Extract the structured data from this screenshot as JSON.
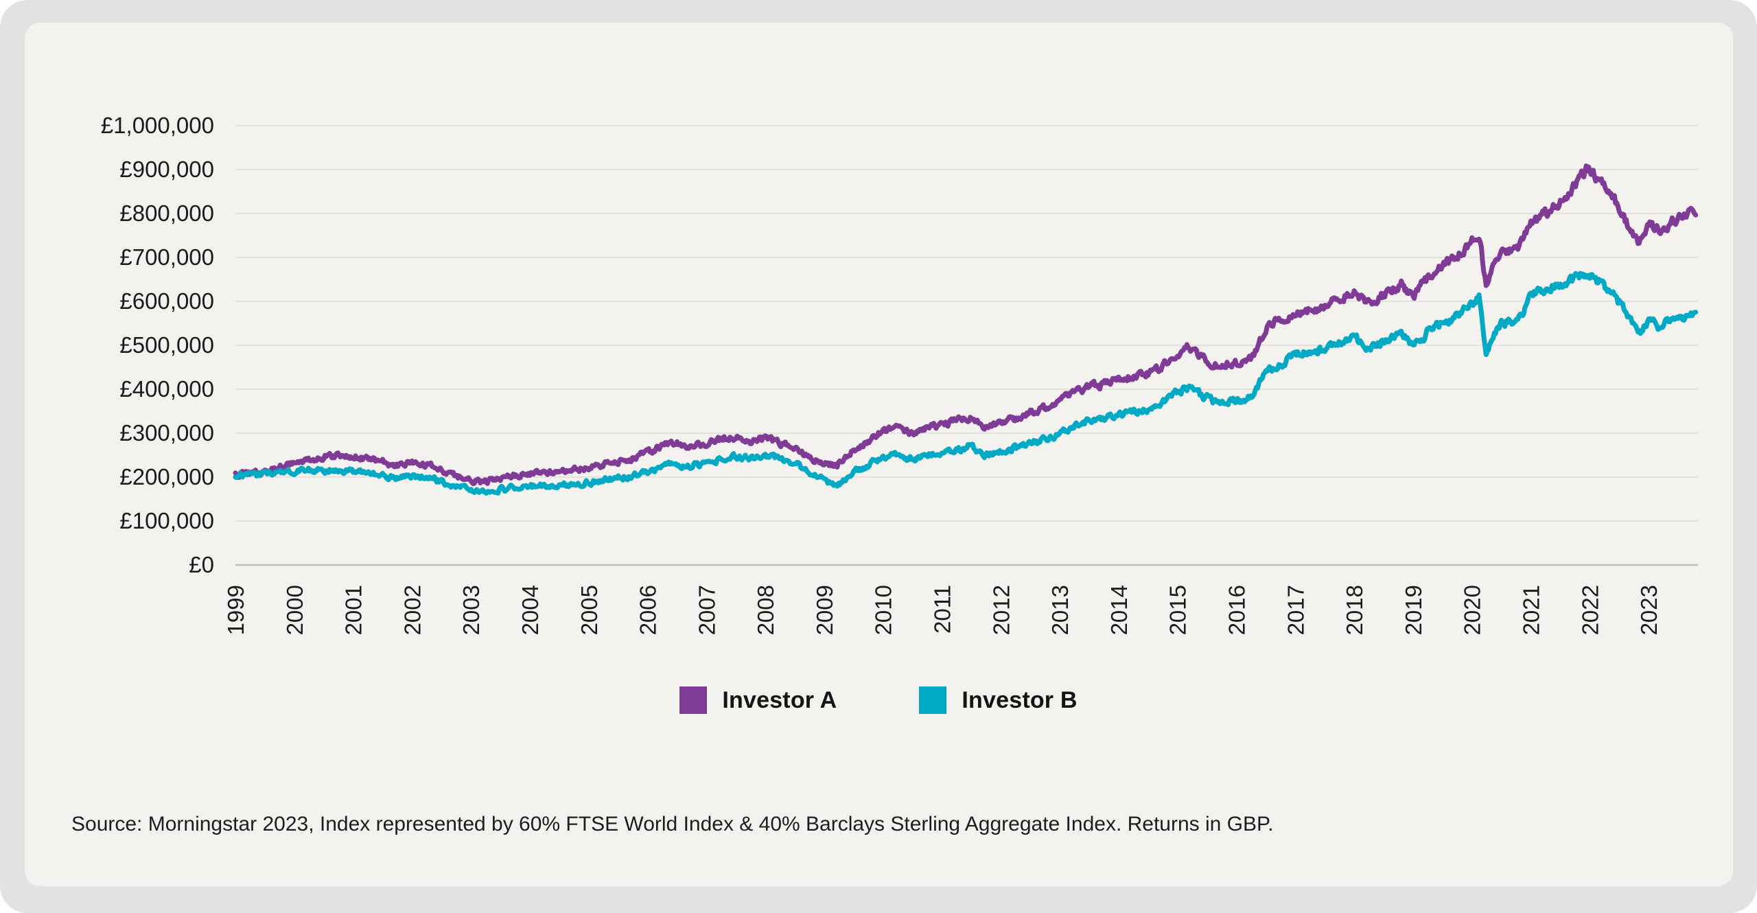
{
  "window": {
    "background_color": "#e2e2e4",
    "card_background_color": "#f3f2ef",
    "gridline_color": "#e5e3e0",
    "axisline_color": "#bcbbb9",
    "text_color": "#1b1b1b"
  },
  "chart_data": {
    "type": "line",
    "title": "",
    "xlabel": "",
    "ylabel": "",
    "currency": "GBP",
    "ylim": [
      0,
      1000000
    ],
    "xlim": [
      1999,
      2023.85
    ],
    "grid": "horizontal",
    "legend_position": "bottom-center",
    "y_ticks": [
      {
        "value": 0,
        "label": "£0"
      },
      {
        "value": 100000,
        "label": "£100,000"
      },
      {
        "value": 200000,
        "label": "£200,000"
      },
      {
        "value": 300000,
        "label": "£300,000"
      },
      {
        "value": 400000,
        "label": "£400,000"
      },
      {
        "value": 500000,
        "label": "£500,000"
      },
      {
        "value": 600000,
        "label": "£600,000"
      },
      {
        "value": 700000,
        "label": "£700,000"
      },
      {
        "value": 800000,
        "label": "£800,000"
      },
      {
        "value": 900000,
        "label": "£900,000"
      },
      {
        "value": 1000000,
        "label": "£1,000,000"
      }
    ],
    "x_ticks": [
      {
        "value": 1999,
        "label": "1999"
      },
      {
        "value": 2000,
        "label": "2000"
      },
      {
        "value": 2001,
        "label": "2001"
      },
      {
        "value": 2002,
        "label": "2002"
      },
      {
        "value": 2003,
        "label": "2003"
      },
      {
        "value": 2004,
        "label": "2004"
      },
      {
        "value": 2005,
        "label": "2005"
      },
      {
        "value": 2006,
        "label": "2006"
      },
      {
        "value": 2007,
        "label": "2007"
      },
      {
        "value": 2008,
        "label": "2008"
      },
      {
        "value": 2009,
        "label": "2009"
      },
      {
        "value": 2010,
        "label": "2010"
      },
      {
        "value": 2011,
        "label": "2011"
      },
      {
        "value": 2012,
        "label": "2012"
      },
      {
        "value": 2013,
        "label": "2013"
      },
      {
        "value": 2014,
        "label": "2014"
      },
      {
        "value": 2015,
        "label": "2015"
      },
      {
        "value": 2016,
        "label": "2016"
      },
      {
        "value": 2017,
        "label": "2017"
      },
      {
        "value": 2018,
        "label": "2018"
      },
      {
        "value": 2019,
        "label": "2019"
      },
      {
        "value": 2020,
        "label": "2020"
      },
      {
        "value": 2021,
        "label": "2021"
      },
      {
        "value": 2022,
        "label": "2022"
      },
      {
        "value": 2023,
        "label": "2023"
      }
    ],
    "series": [
      {
        "name": "Investor A",
        "color": "#7F3B95",
        "points": [
          [
            1999.0,
            205000
          ],
          [
            1999.25,
            210000
          ],
          [
            1999.5,
            214000
          ],
          [
            1999.75,
            222000
          ],
          [
            2000.0,
            231000
          ],
          [
            2000.25,
            240000
          ],
          [
            2000.5,
            246000
          ],
          [
            2000.75,
            251000
          ],
          [
            2001.0,
            247000
          ],
          [
            2001.25,
            241000
          ],
          [
            2001.5,
            237000
          ],
          [
            2001.7,
            224000
          ],
          [
            2001.9,
            232000
          ],
          [
            2002.1,
            230000
          ],
          [
            2002.4,
            222000
          ],
          [
            2002.6,
            210000
          ],
          [
            2002.8,
            200000
          ],
          [
            2003.0,
            193000
          ],
          [
            2003.2,
            187000
          ],
          [
            2003.5,
            199000
          ],
          [
            2003.75,
            205000
          ],
          [
            2004.0,
            209000
          ],
          [
            2004.3,
            211000
          ],
          [
            2004.6,
            214000
          ],
          [
            2004.9,
            219000
          ],
          [
            2005.1,
            224000
          ],
          [
            2005.4,
            232000
          ],
          [
            2005.7,
            241000
          ],
          [
            2006.0,
            256000
          ],
          [
            2006.25,
            270000
          ],
          [
            2006.5,
            280000
          ],
          [
            2006.7,
            267000
          ],
          [
            2007.0,
            277000
          ],
          [
            2007.3,
            289000
          ],
          [
            2007.5,
            290000
          ],
          [
            2007.75,
            281000
          ],
          [
            2008.0,
            288000
          ],
          [
            2008.25,
            277000
          ],
          [
            2008.5,
            267000
          ],
          [
            2008.75,
            242000
          ],
          [
            2009.0,
            230000
          ],
          [
            2009.2,
            225000
          ],
          [
            2009.5,
            262000
          ],
          [
            2009.75,
            283000
          ],
          [
            2010.0,
            303000
          ],
          [
            2010.25,
            310000
          ],
          [
            2010.5,
            296000
          ],
          [
            2010.75,
            312000
          ],
          [
            2011.0,
            320000
          ],
          [
            2011.3,
            330000
          ],
          [
            2011.5,
            334000
          ],
          [
            2011.7,
            308000
          ],
          [
            2011.9,
            318000
          ],
          [
            2012.1,
            327000
          ],
          [
            2012.3,
            336000
          ],
          [
            2012.5,
            348000
          ],
          [
            2012.75,
            356000
          ],
          [
            2013.0,
            372000
          ],
          [
            2013.25,
            392000
          ],
          [
            2013.5,
            405000
          ],
          [
            2013.75,
            412000
          ],
          [
            2014.0,
            420000
          ],
          [
            2014.25,
            428000
          ],
          [
            2014.5,
            436000
          ],
          [
            2014.75,
            452000
          ],
          [
            2015.0,
            480000
          ],
          [
            2015.2,
            497000
          ],
          [
            2015.45,
            468000
          ],
          [
            2015.7,
            452000
          ],
          [
            2015.9,
            462000
          ],
          [
            2016.1,
            458000
          ],
          [
            2016.3,
            475000
          ],
          [
            2016.5,
            540000
          ],
          [
            2016.75,
            560000
          ],
          [
            2017.0,
            573000
          ],
          [
            2017.25,
            578000
          ],
          [
            2017.5,
            589000
          ],
          [
            2017.75,
            605000
          ],
          [
            2018.0,
            623000
          ],
          [
            2018.2,
            593000
          ],
          [
            2018.5,
            615000
          ],
          [
            2018.8,
            640000
          ],
          [
            2019.0,
            608000
          ],
          [
            2019.25,
            655000
          ],
          [
            2019.5,
            684000
          ],
          [
            2019.75,
            700000
          ],
          [
            2020.0,
            740000
          ],
          [
            2020.13,
            753000
          ],
          [
            2020.24,
            631000
          ],
          [
            2020.45,
            705000
          ],
          [
            2020.6,
            716000
          ],
          [
            2020.8,
            722000
          ],
          [
            2021.0,
            772000
          ],
          [
            2021.25,
            800000
          ],
          [
            2021.5,
            824000
          ],
          [
            2021.75,
            868000
          ],
          [
            2021.95,
            905000
          ],
          [
            2022.15,
            872000
          ],
          [
            2022.3,
            855000
          ],
          [
            2022.5,
            815000
          ],
          [
            2022.7,
            762000
          ],
          [
            2022.85,
            735000
          ],
          [
            2023.0,
            782000
          ],
          [
            2023.2,
            755000
          ],
          [
            2023.4,
            785000
          ],
          [
            2023.6,
            792000
          ],
          [
            2023.8,
            808000
          ]
        ]
      },
      {
        "name": "Investor B",
        "color": "#00A9C4",
        "points": [
          [
            1999.0,
            205000
          ],
          [
            1999.25,
            207000
          ],
          [
            1999.5,
            209000
          ],
          [
            1999.75,
            211000
          ],
          [
            2000.0,
            213000
          ],
          [
            2000.25,
            215000
          ],
          [
            2000.5,
            216000
          ],
          [
            2000.75,
            215000
          ],
          [
            2001.0,
            213000
          ],
          [
            2001.25,
            210000
          ],
          [
            2001.5,
            206000
          ],
          [
            2001.7,
            196000
          ],
          [
            2001.9,
            202000
          ],
          [
            2002.1,
            200000
          ],
          [
            2002.4,
            194000
          ],
          [
            2002.6,
            186000
          ],
          [
            2002.8,
            178000
          ],
          [
            2003.0,
            170000
          ],
          [
            2003.2,
            164000
          ],
          [
            2003.5,
            172000
          ],
          [
            2003.75,
            176000
          ],
          [
            2004.0,
            179000
          ],
          [
            2004.3,
            181000
          ],
          [
            2004.6,
            183000
          ],
          [
            2004.9,
            186000
          ],
          [
            2005.1,
            190000
          ],
          [
            2005.4,
            196000
          ],
          [
            2005.7,
            202000
          ],
          [
            2006.0,
            212000
          ],
          [
            2006.25,
            222000
          ],
          [
            2006.5,
            230000
          ],
          [
            2006.7,
            223000
          ],
          [
            2007.0,
            232000
          ],
          [
            2007.3,
            242000
          ],
          [
            2007.5,
            246000
          ],
          [
            2007.75,
            243000
          ],
          [
            2008.0,
            250000
          ],
          [
            2008.25,
            241000
          ],
          [
            2008.5,
            232000
          ],
          [
            2008.75,
            210000
          ],
          [
            2009.0,
            193000
          ],
          [
            2009.2,
            178000
          ],
          [
            2009.5,
            212000
          ],
          [
            2009.75,
            228000
          ],
          [
            2010.0,
            246000
          ],
          [
            2010.25,
            252000
          ],
          [
            2010.5,
            238000
          ],
          [
            2010.75,
            250000
          ],
          [
            2011.0,
            255000
          ],
          [
            2011.3,
            262000
          ],
          [
            2011.5,
            276000
          ],
          [
            2011.7,
            248000
          ],
          [
            2011.9,
            256000
          ],
          [
            2012.1,
            262000
          ],
          [
            2012.3,
            268000
          ],
          [
            2012.5,
            277000
          ],
          [
            2012.75,
            284000
          ],
          [
            2013.0,
            300000
          ],
          [
            2013.25,
            318000
          ],
          [
            2013.5,
            330000
          ],
          [
            2013.75,
            336000
          ],
          [
            2014.0,
            342000
          ],
          [
            2014.25,
            350000
          ],
          [
            2014.5,
            357000
          ],
          [
            2014.75,
            372000
          ],
          [
            2015.0,
            394000
          ],
          [
            2015.2,
            404000
          ],
          [
            2015.45,
            382000
          ],
          [
            2015.7,
            368000
          ],
          [
            2015.9,
            376000
          ],
          [
            2016.1,
            374000
          ],
          [
            2016.3,
            390000
          ],
          [
            2016.5,
            438000
          ],
          [
            2016.75,
            455000
          ],
          [
            2017.0,
            482000
          ],
          [
            2017.25,
            486000
          ],
          [
            2017.5,
            492000
          ],
          [
            2017.75,
            505000
          ],
          [
            2018.0,
            520000
          ],
          [
            2018.2,
            492000
          ],
          [
            2018.5,
            510000
          ],
          [
            2018.8,
            528000
          ],
          [
            2019.0,
            494000
          ],
          [
            2019.25,
            532000
          ],
          [
            2019.5,
            550000
          ],
          [
            2019.75,
            566000
          ],
          [
            2020.0,
            592000
          ],
          [
            2020.13,
            610000
          ],
          [
            2020.24,
            478000
          ],
          [
            2020.45,
            545000
          ],
          [
            2020.6,
            553000
          ],
          [
            2020.8,
            560000
          ],
          [
            2021.0,
            612000
          ],
          [
            2021.25,
            628000
          ],
          [
            2021.5,
            640000
          ],
          [
            2021.75,
            652000
          ],
          [
            2021.95,
            663000
          ],
          [
            2022.15,
            645000
          ],
          [
            2022.3,
            630000
          ],
          [
            2022.5,
            597000
          ],
          [
            2022.7,
            555000
          ],
          [
            2022.85,
            527000
          ],
          [
            2023.0,
            556000
          ],
          [
            2023.2,
            538000
          ],
          [
            2023.4,
            560000
          ],
          [
            2023.6,
            565000
          ],
          [
            2023.8,
            573000
          ]
        ]
      }
    ]
  },
  "footer": {
    "source_text": "Source: Morningstar 2023, Index represented by 60% FTSE World Index & 40% Barclays Sterling Aggregate Index. Returns in GBP."
  }
}
